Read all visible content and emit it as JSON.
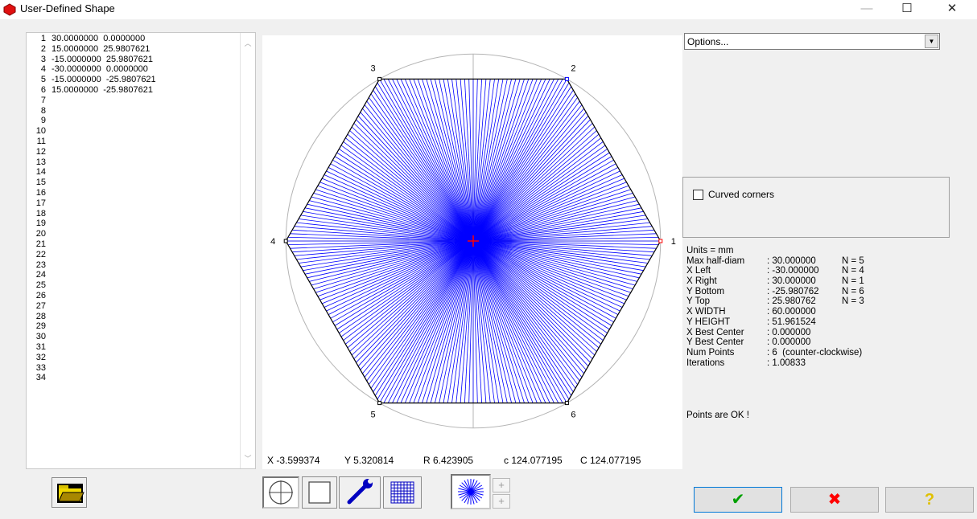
{
  "window": {
    "title": "User-Defined Shape",
    "min_glyph": "—",
    "max_glyph": "☐",
    "close_glyph": "✕"
  },
  "editor": {
    "line_numbers": [
      "1",
      "2",
      "3",
      "4",
      "5",
      "6",
      "7",
      "8",
      "9",
      "10",
      "11",
      "12",
      "13",
      "14",
      "15",
      "16",
      "17",
      "18",
      "19",
      "20",
      "21",
      "22",
      "23",
      "24",
      "25",
      "26",
      "27",
      "28",
      "29",
      "30",
      "31",
      "32",
      "33",
      "34"
    ],
    "rows": [
      "30.0000000  0.0000000",
      "15.0000000  25.9807621",
      "-15.0000000  25.9807621",
      "-30.0000000  0.0000000",
      "-15.0000000  -25.9807621",
      "15.0000000  -25.9807621"
    ]
  },
  "shape": {
    "points": [
      [
        30,
        0
      ],
      [
        15,
        25.9807621
      ],
      [
        -15,
        25.9807621
      ],
      [
        -30,
        0
      ],
      [
        -15,
        -25.9807621
      ],
      [
        15,
        -25.9807621
      ]
    ],
    "point_labels": [
      "1",
      "2",
      "3",
      "4",
      "5",
      "6"
    ],
    "center_mark": [
      0,
      0
    ],
    "colors": {
      "fill_lines": "#0000ff",
      "outline": "#000000",
      "circle": "#b4b4b4",
      "center_mark": "#ff0000"
    }
  },
  "readout": {
    "x": "X -3.599374",
    "y": "Y 5.320814",
    "r": "R 6.423905",
    "c_lower": "c 124.077195",
    "c_upper": "C 124.077195"
  },
  "options": {
    "selected": "Options..."
  },
  "curved_corners": {
    "label": "Curved corners",
    "checked": false
  },
  "info": {
    "units": "Units = mm",
    "rows": [
      {
        "label": "Max half-diam",
        "value": ": 30.000000",
        "n": "N = 5"
      },
      {
        "label": "X Left",
        "value": ": -30.000000",
        "n": "N = 4"
      },
      {
        "label": "X Right",
        "value": ": 30.000000",
        "n": "N = 1"
      },
      {
        "label": "Y Bottom",
        "value": ": -25.980762",
        "n": "N = 6"
      },
      {
        "label": "Y Top",
        "value": ": 25.980762",
        "n": "N = 3"
      },
      {
        "label": "X WIDTH",
        "value": ": 60.000000",
        "n": ""
      },
      {
        "label": "Y HEIGHT",
        "value": ": 51.961524",
        "n": ""
      },
      {
        "label": "X Best Center",
        "value": ": 0.000000",
        "n": ""
      },
      {
        "label": "Y Best Center",
        "value": ": 0.000000",
        "n": ""
      },
      {
        "label": "Num Points",
        "value": ": 6  (counter-clockwise)",
        "n": ""
      },
      {
        "label": "Iterations",
        "value": ": 1.00833",
        "n": ""
      }
    ],
    "status": "Points are OK !"
  },
  "toolbar": {
    "plus_upper": "+",
    "plus_lower": "+"
  },
  "buttons": {
    "ok": "✔",
    "cancel": "✖",
    "help": "?"
  },
  "icon_colors": {
    "ok": "#00a000",
    "cancel": "#ff0000",
    "help": "#e0c000"
  }
}
